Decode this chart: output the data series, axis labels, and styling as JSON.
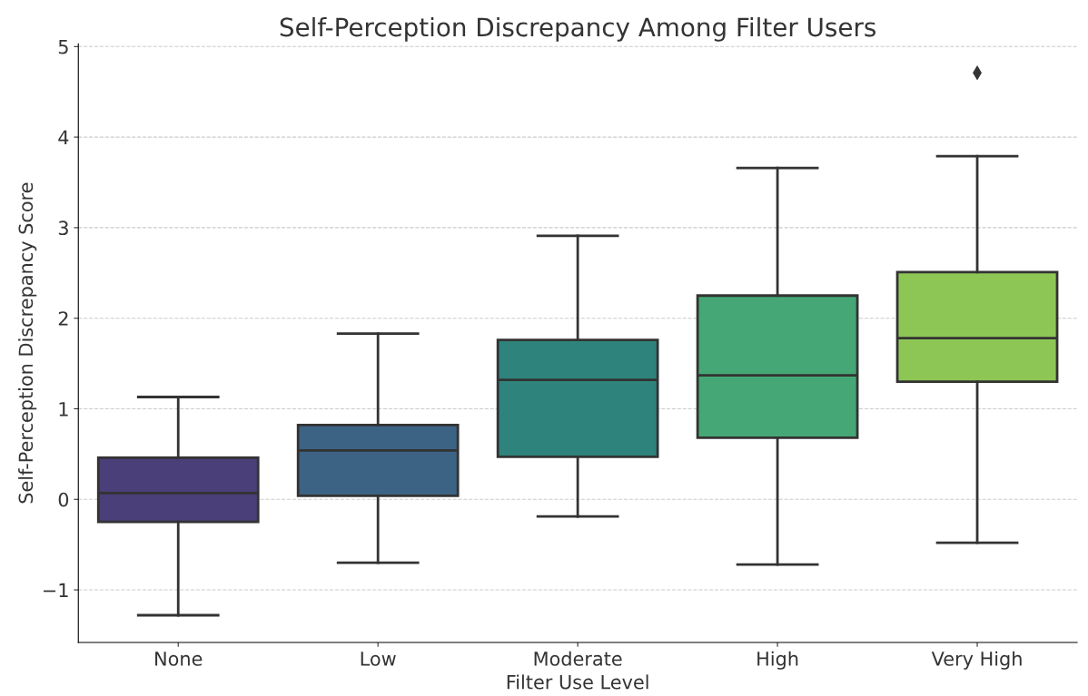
{
  "chart_data": {
    "type": "box",
    "title": "Self-Perception Discrepancy Among Filter Users",
    "xlabel": "Filter Use Level",
    "ylabel": "Self-Perception Discrepancy Score",
    "categories": [
      "None",
      "Low",
      "Moderate",
      "High",
      "Very High"
    ],
    "colors": [
      "#4a3f78",
      "#3d6384",
      "#2e847c",
      "#45a775",
      "#8ec656"
    ],
    "boxes": [
      {
        "low": -1.28,
        "q1": -0.25,
        "median": 0.07,
        "q3": 0.46,
        "high": 1.13
      },
      {
        "low": -0.7,
        "q1": 0.04,
        "median": 0.54,
        "q3": 0.82,
        "high": 1.83
      },
      {
        "low": -0.19,
        "q1": 0.47,
        "median": 1.32,
        "q3": 1.76,
        "high": 2.91
      },
      {
        "low": -0.72,
        "q1": 0.68,
        "median": 1.37,
        "q3": 2.25,
        "high": 3.66
      },
      {
        "low": -0.48,
        "q1": 1.3,
        "median": 1.78,
        "q3": 2.51,
        "high": 3.79,
        "outliers": [
          4.71
        ]
      }
    ],
    "ylim": [
      -1.58,
      5.03
    ],
    "yticks": [
      {
        "value": -1,
        "label": "−1"
      },
      0,
      1,
      2,
      3,
      4,
      5
    ],
    "grid": "y",
    "marker": "diamond"
  }
}
